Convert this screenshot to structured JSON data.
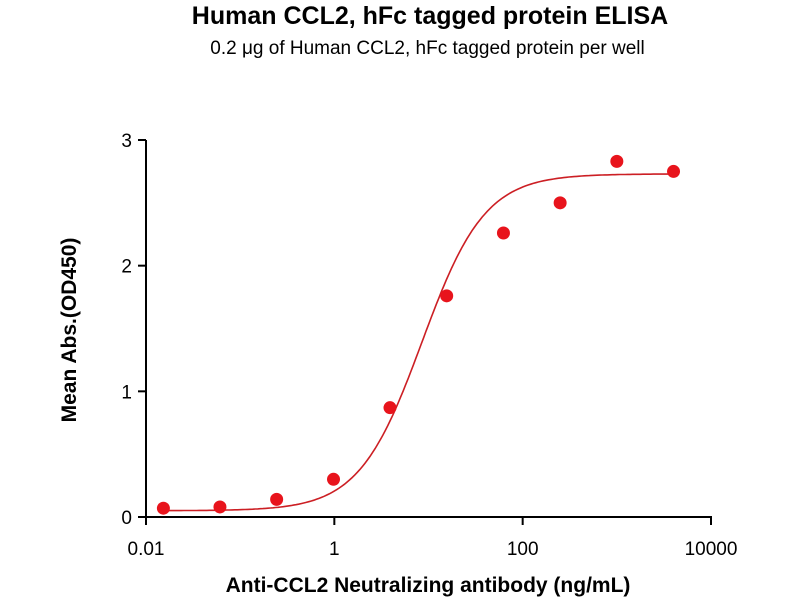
{
  "chart_data": {
    "type": "scatter",
    "title": "Human CCL2, hFc tagged protein ELISA",
    "subtitle": "0.2 μg of Human CCL2, hFc tagged protein per well",
    "xlabel": "Anti-CCL2 Neutralizing antibody (ng/mL)",
    "ylabel": "Mean Abs.(OD450)",
    "xscale": "log",
    "xlim": [
      0.01,
      10000
    ],
    "ylim": [
      0,
      3
    ],
    "xticks": [
      0.01,
      1,
      100,
      10000
    ],
    "xtick_labels": [
      "0.01",
      "1",
      "100",
      "10000"
    ],
    "yticks": [
      0,
      1,
      2,
      3
    ],
    "ytick_labels": [
      "0",
      "1",
      "2",
      "3"
    ],
    "grid": false,
    "series": [
      {
        "name": "Mean Abs.",
        "color": "#e8141c",
        "x": [
          0.0153,
          0.061,
          0.244,
          0.98,
          3.9,
          15.6,
          62.5,
          250,
          1000,
          4000
        ],
        "y": [
          0.07,
          0.08,
          0.14,
          0.3,
          0.87,
          1.76,
          2.26,
          2.5,
          2.83,
          2.75
        ]
      }
    ],
    "fit": {
      "model": "4PL",
      "color": "#cc1f24",
      "bottom": 0.05,
      "top": 2.73,
      "ec50": 8.5,
      "hill": 1.3
    }
  }
}
